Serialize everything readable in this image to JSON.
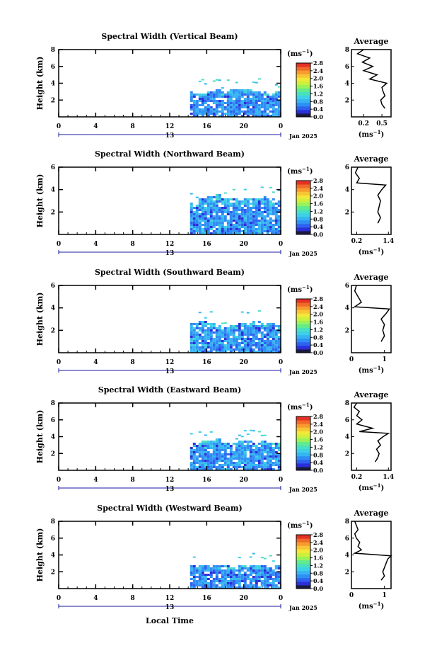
{
  "figure": {
    "xlabel": "Local Time",
    "date_label": "Jan 2025",
    "day_label": "13",
    "colorbar_unit": "(ms",
    "colorbar_unit_exp": "−1",
    "avg_unit": "(ms",
    "avg_unit_exp": "−1",
    "colorscale": [
      "#1a1a40",
      "#2b2fd9",
      "#2d62f0",
      "#2f8ef5",
      "#36b4f2",
      "#3dd0e6",
      "#48e0c0",
      "#62eb8a",
      "#9af25a",
      "#cdf03c",
      "#f2e83a",
      "#f8c634",
      "#f89a2e",
      "#f06a2a",
      "#e53224"
    ]
  },
  "chart_data": [
    {
      "type": "heatmap",
      "title": "Spectral Width (Vertical Beam)",
      "ylabel": "Height (km)",
      "xlim": [
        0,
        24
      ],
      "ylim": [
        0,
        8
      ],
      "xticks": [
        "0",
        "4",
        "8",
        "12",
        "16",
        "20",
        "0"
      ],
      "yticks": [
        "2",
        "4",
        "6",
        "8"
      ],
      "colorbar_ticks": [
        "0.0",
        "0.4",
        "0.8",
        "1.2",
        "1.6",
        "2.0",
        "2.4",
        "2.8"
      ],
      "colorbar_range": [
        0,
        2.8
      ],
      "data_region": {
        "t_start": 14.2,
        "t_end": 24,
        "top_profile": [
          3.1,
          3.0,
          3.2,
          3.3,
          3.1,
          3.4,
          3.5,
          3.3,
          3.2,
          3.1,
          3.0,
          3.2
        ],
        "typical_width": 0.45
      },
      "average": {
        "title": "Average",
        "xlim": [
          0,
          0.65
        ],
        "xticks": [
          "0.2",
          "0.5"
        ],
        "profile": [
          [
            1.0,
            0.55
          ],
          [
            1.5,
            0.5
          ],
          [
            2.0,
            0.48
          ],
          [
            2.5,
            0.55
          ],
          [
            3.0,
            0.52
          ],
          [
            3.5,
            0.5
          ],
          [
            4.0,
            0.58
          ],
          [
            4.5,
            0.3
          ],
          [
            5.0,
            0.42
          ],
          [
            5.5,
            0.2
          ],
          [
            6.0,
            0.35
          ],
          [
            6.5,
            0.18
          ],
          [
            7.0,
            0.3
          ],
          [
            7.5,
            0.1
          ],
          [
            8.0,
            0.2
          ]
        ]
      }
    },
    {
      "type": "heatmap",
      "title": "Spectral Width (Northward Beam)",
      "ylabel": "Height (km)",
      "xlim": [
        0,
        24
      ],
      "ylim": [
        0,
        6
      ],
      "xticks": [
        "0",
        "4",
        "8",
        "12",
        "16",
        "20",
        "0"
      ],
      "yticks": [
        "2",
        "4",
        "6"
      ],
      "colorbar_ticks": [
        "0.0",
        "0.4",
        "0.8",
        "1.2",
        "1.6",
        "2.0",
        "2.4",
        "2.8"
      ],
      "colorbar_range": [
        0,
        2.8
      ],
      "data_region": {
        "t_start": 14.2,
        "t_end": 24,
        "top_profile": [
          3.0,
          3.3,
          3.5,
          3.6,
          3.4,
          3.3,
          3.2,
          3.3,
          3.4,
          3.5,
          3.3,
          3.2
        ],
        "typical_width": 0.5
      },
      "average": {
        "title": "Average",
        "xlim": [
          0,
          1.5
        ],
        "xticks": [
          "0.2",
          "1.4"
        ],
        "profile": [
          [
            1.0,
            1.0
          ],
          [
            1.5,
            1.1
          ],
          [
            2.0,
            1.0
          ],
          [
            2.5,
            1.05
          ],
          [
            3.0,
            1.1
          ],
          [
            3.5,
            1.0
          ],
          [
            4.0,
            1.15
          ],
          [
            4.4,
            1.3
          ],
          [
            4.6,
            0.2
          ],
          [
            5.0,
            0.3
          ],
          [
            5.5,
            0.15
          ],
          [
            6.0,
            0.25
          ]
        ]
      }
    },
    {
      "type": "heatmap",
      "title": "Spectral Width (Southward Beam)",
      "ylabel": "Height (km)",
      "xlim": [
        0,
        24
      ],
      "ylim": [
        0,
        6
      ],
      "xticks": [
        "0",
        "4",
        "8",
        "12",
        "16",
        "20",
        "0"
      ],
      "yticks": [
        "2",
        "4",
        "6"
      ],
      "colorbar_ticks": [
        "0.0",
        "0.4",
        "0.8",
        "1.2",
        "1.6",
        "2.0",
        "2.4",
        "2.8"
      ],
      "colorbar_range": [
        0,
        2.8
      ],
      "data_region": {
        "t_start": 14.2,
        "t_end": 24,
        "top_profile": [
          2.8,
          2.9,
          2.7,
          2.5,
          2.4,
          2.6,
          2.7,
          2.8,
          2.9,
          2.8,
          2.7,
          2.6
        ],
        "typical_width": 0.5
      },
      "average": {
        "title": "Average",
        "xlim": [
          0,
          1.2
        ],
        "xticks": [
          "0",
          "1"
        ],
        "profile": [
          [
            1.0,
            0.9
          ],
          [
            1.5,
            1.0
          ],
          [
            2.0,
            0.95
          ],
          [
            2.5,
            1.0
          ],
          [
            3.0,
            0.9
          ],
          [
            3.5,
            1.05
          ],
          [
            3.9,
            1.15
          ],
          [
            4.1,
            0.1
          ],
          [
            4.5,
            0.3
          ],
          [
            5.0,
            0.2
          ],
          [
            5.5,
            0.1
          ],
          [
            6.0,
            0.15
          ]
        ]
      }
    },
    {
      "type": "heatmap",
      "title": "Spectral Width (Eastward Beam)",
      "ylabel": "Height (km)",
      "xlim": [
        0,
        24
      ],
      "ylim": [
        0,
        8
      ],
      "xticks": [
        "0",
        "4",
        "8",
        "12",
        "16",
        "20",
        "0"
      ],
      "yticks": [
        "2",
        "4",
        "6",
        "8"
      ],
      "colorbar_ticks": [
        "0.0",
        "0.4",
        "0.8",
        "1.2",
        "1.6",
        "2.0",
        "2.4",
        "2.8"
      ],
      "colorbar_range": [
        0,
        2.8
      ],
      "data_region": {
        "t_start": 14.2,
        "t_end": 24,
        "top_profile": [
          3.5,
          3.7,
          3.6,
          3.8,
          3.5,
          3.4,
          3.6,
          3.7,
          3.5,
          3.6,
          3.4,
          3.5
        ],
        "typical_width": 0.5
      },
      "average": {
        "title": "Average",
        "xlim": [
          0,
          1.5
        ],
        "xticks": [
          "0.2",
          "1.4"
        ],
        "profile": [
          [
            1.0,
            0.9
          ],
          [
            1.5,
            1.0
          ],
          [
            2.0,
            1.05
          ],
          [
            2.5,
            0.95
          ],
          [
            3.0,
            1.1
          ],
          [
            3.5,
            1.0
          ],
          [
            4.0,
            1.2
          ],
          [
            4.4,
            1.4
          ],
          [
            4.6,
            0.3
          ],
          [
            5.0,
            0.8
          ],
          [
            5.5,
            0.2
          ],
          [
            6.0,
            0.4
          ],
          [
            6.5,
            0.2
          ],
          [
            7.0,
            0.3
          ],
          [
            7.5,
            0.1
          ],
          [
            8.0,
            0.2
          ]
        ]
      }
    },
    {
      "type": "heatmap",
      "title": "Spectral Width (Westward Beam)",
      "ylabel": "Height (km)",
      "xlim": [
        0,
        24
      ],
      "ylim": [
        0,
        8
      ],
      "xticks": [
        "0",
        "4",
        "8",
        "12",
        "16",
        "20",
        "0"
      ],
      "yticks": [
        "2",
        "4",
        "6",
        "8"
      ],
      "colorbar_ticks": [
        "0.0",
        "0.4",
        "0.8",
        "1.2",
        "1.6",
        "2.0",
        "2.4",
        "2.8"
      ],
      "colorbar_range": [
        0,
        2.8
      ],
      "data_region": {
        "t_start": 14.2,
        "t_end": 24,
        "top_profile": [
          2.8,
          2.9,
          3.0,
          2.9,
          2.8,
          2.7,
          2.9,
          3.0,
          2.9,
          2.8,
          2.7,
          2.8
        ],
        "typical_width": 0.45
      },
      "average": {
        "title": "Average",
        "xlim": [
          0,
          1.2
        ],
        "xticks": [
          "0",
          "1"
        ],
        "profile": [
          [
            1.0,
            0.9
          ],
          [
            1.5,
            1.0
          ],
          [
            2.0,
            0.95
          ],
          [
            2.5,
            1.0
          ],
          [
            3.0,
            1.05
          ],
          [
            3.5,
            1.1
          ],
          [
            3.9,
            1.2
          ],
          [
            4.2,
            0.1
          ],
          [
            4.6,
            0.3
          ],
          [
            5.0,
            0.2
          ],
          [
            5.5,
            0.25
          ],
          [
            6.0,
            0.15
          ],
          [
            6.5,
            0.1
          ],
          [
            7.0,
            0.2
          ],
          [
            8.0,
            0.1
          ]
        ]
      }
    }
  ]
}
